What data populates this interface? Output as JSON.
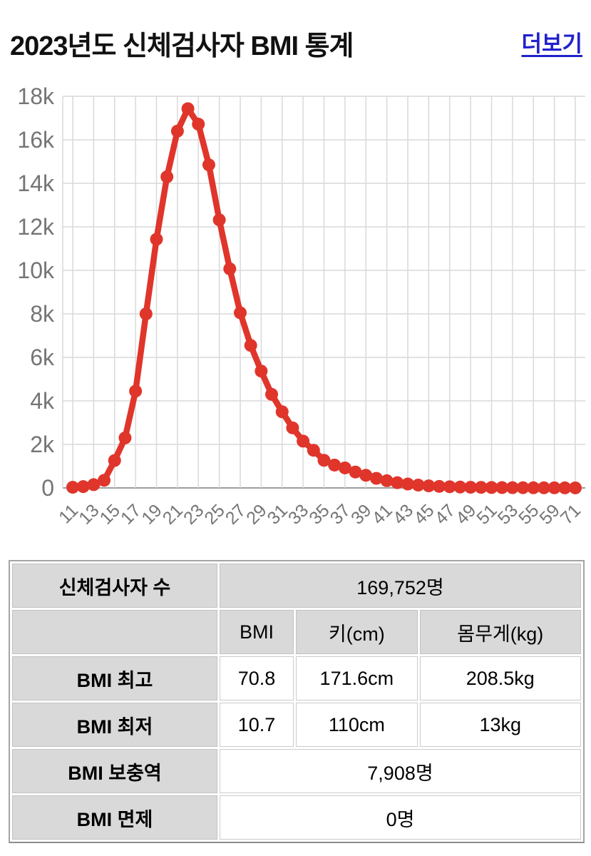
{
  "header": {
    "title": "2023년도 신체검사자 BMI 통계",
    "more_link_label": "더보기",
    "more_link_color": "#2121cd"
  },
  "chart_data": {
    "type": "line",
    "title": "",
    "xlabel": "",
    "ylabel": "",
    "categories": [
      11,
      12,
      13,
      14,
      15,
      16,
      17,
      18,
      19,
      20,
      21,
      22,
      23,
      24,
      25,
      26,
      27,
      28,
      29,
      30,
      31,
      32,
      33,
      34,
      35,
      36,
      37,
      38,
      39,
      40,
      41,
      42,
      43,
      44,
      45,
      46,
      47,
      48,
      49,
      50,
      51,
      52,
      53,
      54,
      55,
      57,
      59,
      61,
      71
    ],
    "values": [
      30,
      60,
      150,
      350,
      1260,
      2300,
      4450,
      8000,
      11430,
      14300,
      16400,
      17430,
      16720,
      14850,
      12320,
      10070,
      8050,
      6550,
      5370,
      4300,
      3500,
      2760,
      2150,
      1730,
      1270,
      1050,
      920,
      730,
      580,
      440,
      330,
      240,
      180,
      130,
      95,
      70,
      55,
      40,
      30,
      25,
      20,
      15,
      12,
      10,
      8,
      6,
      5,
      3,
      2
    ],
    "y_axis": {
      "min": 0,
      "max": 18000,
      "tick_step": 2000,
      "tick_labels": [
        "18k",
        "16k",
        "14k",
        "12k",
        "10k",
        "8k",
        "6k",
        "4k",
        "2k",
        "0"
      ]
    },
    "x_axis": {
      "label_every": 2,
      "tick_labels_shown": [
        11,
        13,
        15,
        17,
        19,
        21,
        23,
        25,
        27,
        29,
        31,
        33,
        35,
        37,
        39,
        41,
        43,
        45,
        47,
        49,
        51,
        53,
        55,
        59,
        71
      ],
      "label_rotation_deg": -45
    },
    "grid": true,
    "legend": false,
    "marker": "circle",
    "colors": {
      "line": "#e0352b",
      "grid": "#d9d9d9",
      "zero_line": "#9e9e9e",
      "axis_text": "#757575"
    }
  },
  "table": {
    "header_bg": "#d9d9d9",
    "examinee_count_label": "신체검사자 수",
    "examinee_count_value": "169,752명",
    "col_headers": [
      "BMI",
      "키(cm)",
      "몸무게(kg)"
    ],
    "rows": [
      {
        "label": "BMI 최고",
        "bmi": "70.8",
        "height": "171.6cm",
        "weight": "208.5kg"
      },
      {
        "label": "BMI 최저",
        "bmi": "10.7",
        "height": "110cm",
        "weight": "13kg"
      }
    ],
    "supplement_label": "BMI 보충역",
    "supplement_value": "7,908명",
    "exempt_label": "BMI 면제",
    "exempt_value": "0명"
  }
}
